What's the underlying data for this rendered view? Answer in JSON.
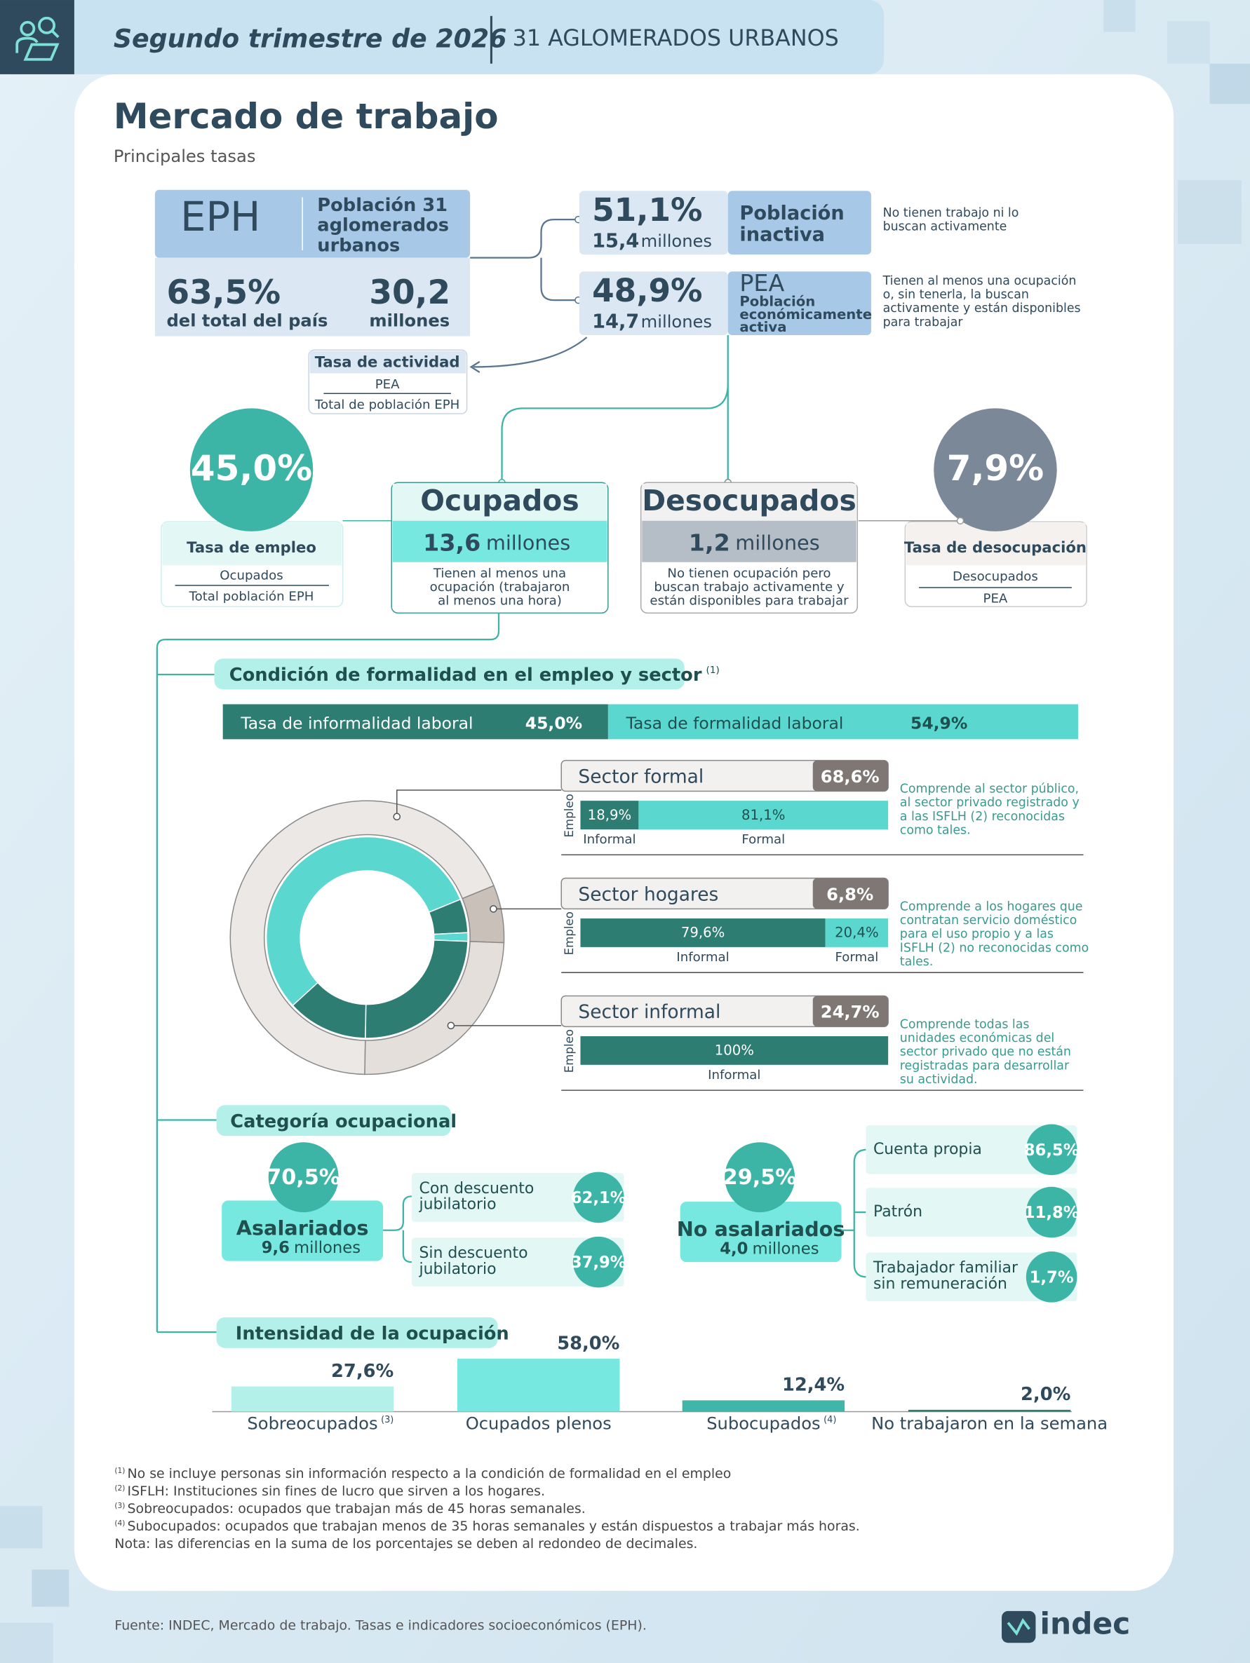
{
  "header": {
    "period": "Segundo trimestre de 2026",
    "coverage": "31 AGLOMERADOS URBANOS"
  },
  "title": "Mercado de trabajo",
  "subtitle": "Principales tasas",
  "eph": {
    "label": "EPH",
    "description": [
      "Población 31",
      "aglomerados",
      "urbanos"
    ],
    "share": "63,5%",
    "share_caption": "del total del país",
    "population": "30,2",
    "population_caption": "millones"
  },
  "inactive": {
    "rate": "51,1%",
    "population": "15,4",
    "unit": "millones",
    "label": [
      "Población",
      "inactiva"
    ],
    "description": [
      "No tienen trabajo ni lo",
      "buscan activamente"
    ]
  },
  "active": {
    "rate": "48,9%",
    "population": "14,7",
    "unit": "millones",
    "abbr": "PEA",
    "label": [
      "Población",
      "económicamente",
      "activa"
    ],
    "description": [
      "Tienen al menos una ocupación",
      "o, sin tenerla, la buscan",
      "activamente y están disponibles",
      "para trabajar"
    ]
  },
  "activity_rate": {
    "label": "Tasa de actividad",
    "numerator": "PEA",
    "denominator": "Total de población EPH"
  },
  "employed": {
    "title": "Ocupados",
    "population": "13,6",
    "unit": "millones",
    "description": [
      "Tienen al menos una",
      "ocupación (trabajaron",
      "al menos una hora)"
    ]
  },
  "unemployed": {
    "title": "Desocupados",
    "population": "1,2",
    "unit": "millones",
    "description": [
      "No tienen ocupación pero",
      "buscan trabajo activamente y",
      "están disponibles para trabajar"
    ]
  },
  "employment_rate": {
    "value": "45,0%",
    "label": "Tasa de empleo",
    "numerator": "Ocupados",
    "denominator": "Total población EPH"
  },
  "unemployment_rate": {
    "value": "7,9%",
    "label": "Tasa de desocupación",
    "numerator": "Desocupados",
    "denominator": "PEA"
  },
  "sections": [
    {
      "title": "Condición de formalidad en el empleo y sector",
      "note": "(1)"
    },
    {
      "title": "Categoría ocupacional"
    },
    {
      "title": "Intensidad de la ocupación"
    }
  ],
  "occupational": {
    "wage": {
      "rate": "70,5%",
      "label": "Asalariados",
      "population": "9,6",
      "unit": "millones",
      "items": [
        {
          "label": [
            "Con descuento",
            "jubilatorio"
          ],
          "rate": "62,1%"
        },
        {
          "label": [
            "Sin descuento",
            "jubilatorio"
          ],
          "rate": "37,9%"
        }
      ]
    },
    "non_wage": {
      "rate": "29,5%",
      "label": "No asalariados",
      "population": "4,0",
      "unit": "millones",
      "items": [
        {
          "label": [
            "Cuenta propia"
          ],
          "rate": "86,5%"
        },
        {
          "label": [
            "Patrón"
          ],
          "rate": "11,8%"
        },
        {
          "label": [
            "Trabajador familiar",
            "sin remuneración"
          ],
          "rate": "1,7%"
        }
      ]
    }
  },
  "footnotes": [
    {
      "marker": "(1)",
      "text": "No se incluye personas sin información respecto a la condición de formalidad en el empleo"
    },
    {
      "marker": "(2)",
      "text": "ISFLH: Instituciones sin fines de lucro que sirven a los hogares."
    },
    {
      "marker": "(3)",
      "text": "Sobreocupados: ocupados que trabajan más de 45 horas semanales."
    },
    {
      "marker": "(4)",
      "text": "Subocupados: ocupados que trabajan menos de 35 horas semanales y están dispuestos a trabajar más horas."
    },
    {
      "text": "Nota: las diferencias en la suma de los porcentajes se deben al redondeo de decimales."
    }
  ],
  "source": "Fuente: INDEC, Mercado de trabajo. Tasas e indicadores socioeconómicos (EPH).",
  "logo": "indec",
  "chart_data": [
    {
      "type": "stacked-bar",
      "categories": [
        "Tasa de informalidad laboral",
        "Tasa de formalidad laboral"
      ],
      "values": [
        45.0,
        54.9
      ],
      "value_labels": [
        "45,0%",
        "54,9%"
      ],
      "colors": [
        "#2d7d73",
        "#5ad8cf"
      ]
    },
    {
      "type": "donut",
      "axis_label": "Empleo",
      "sector_colors": [
        "#ebe8e5",
        "#c9c0ba",
        "#e4dfdb"
      ],
      "employment_colors": [
        "#2d7d73",
        "#5ad8cf"
      ],
      "sectors": [
        {
          "name": "Sector formal",
          "value": 68.6,
          "value_label": "68,6%",
          "description": [
            "Comprende al sector público,",
            "al sector privado registrado y",
            "a las ISFLH (2) reconocidas",
            "como tales."
          ],
          "employment": {
            "categories": [
              "Informal",
              "Formal"
            ],
            "values": [
              18.9,
              81.1
            ],
            "value_labels": [
              "18,9%",
              "81,1%"
            ]
          }
        },
        {
          "name": "Sector hogares",
          "value": 6.8,
          "value_label": "6,8%",
          "description": [
            "Comprende a los hogares que",
            "contratan servicio doméstico",
            "para el uso propio y a las",
            "ISFLH (2) no reconocidas como",
            "tales."
          ],
          "employment": {
            "categories": [
              "Informal",
              "Formal"
            ],
            "values": [
              79.6,
              20.4
            ],
            "value_labels": [
              "79,6%",
              "20,4%"
            ]
          }
        },
        {
          "name": "Sector informal",
          "value": 24.7,
          "value_label": "24,7%",
          "description": [
            "Comprende todas las",
            "unidades económicas del",
            "sector privado que no están",
            "registradas para desarrollar",
            "su actividad."
          ],
          "employment": {
            "categories": [
              "Informal"
            ],
            "values": [
              100
            ],
            "value_labels": [
              "100%"
            ]
          }
        }
      ]
    },
    {
      "type": "bar",
      "categories": [
        "Sobreocupados",
        "Ocupados plenos",
        "Subocupados",
        "No trabajaron en la semana"
      ],
      "category_notes": {
        "0": "(3)",
        "2": "(4)"
      },
      "values": [
        27.6,
        58.0,
        12.4,
        2.0
      ],
      "value_labels": [
        "27,6%",
        "58,0%",
        "12,4%",
        "2,0%"
      ],
      "colors": [
        "#b3f0ea",
        "#76e8e0",
        "#40b6a9",
        "#2d7d73"
      ]
    }
  ]
}
